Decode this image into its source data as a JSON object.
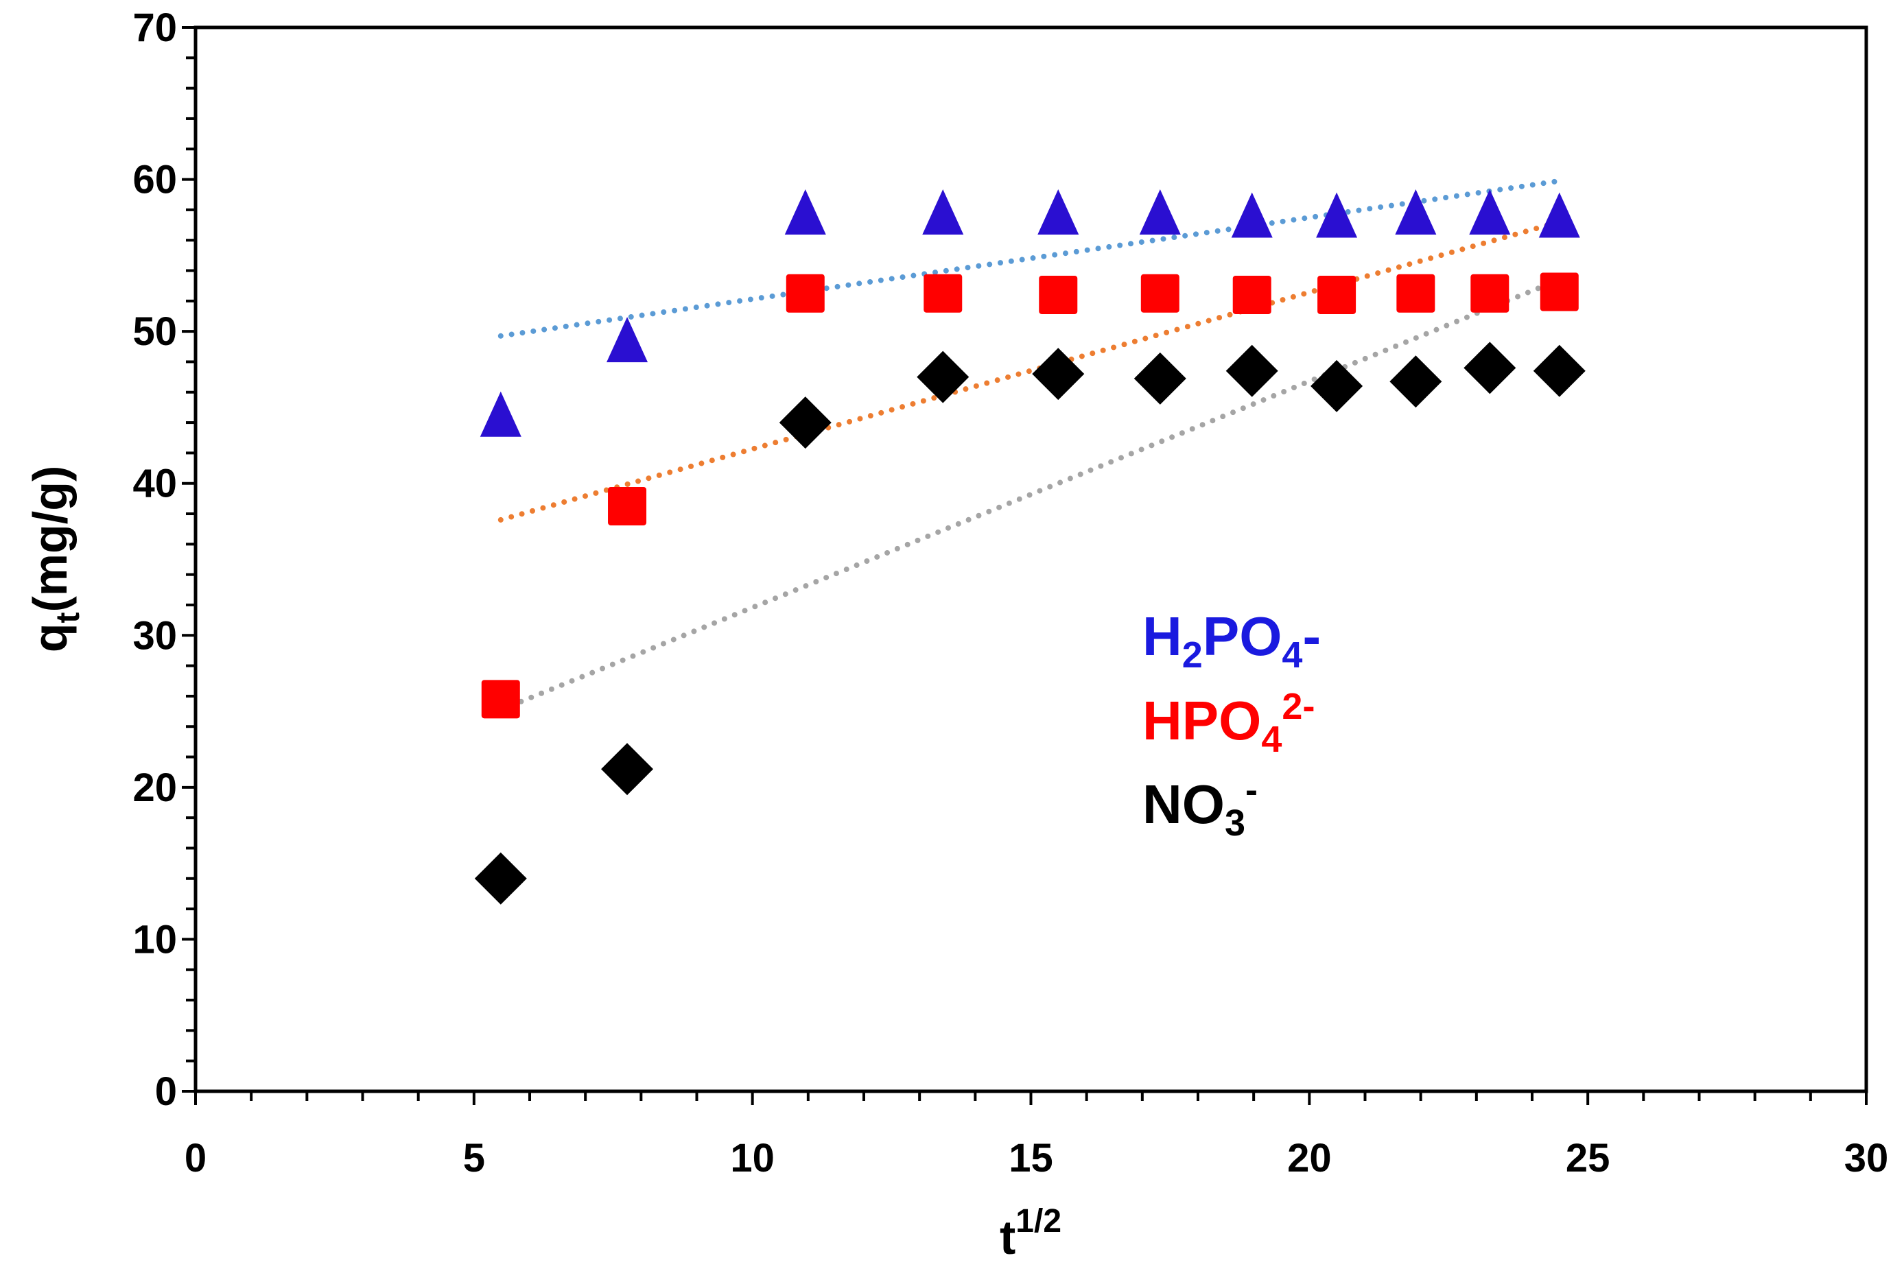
{
  "chart_data": {
    "type": "scatter",
    "title": "",
    "xlabel": "t",
    "xlabel_sup": "1/2",
    "ylabel": "q",
    "ylabel_sub": "t",
    "ylabel_suffix": "(mg/g)",
    "xlim": [
      0,
      30
    ],
    "ylim": [
      0,
      70
    ],
    "x_ticks": [
      0,
      5,
      10,
      15,
      20,
      25,
      30
    ],
    "y_ticks": [
      0,
      10,
      20,
      30,
      40,
      50,
      60,
      70
    ],
    "x_tick_labels": [
      "0",
      "5",
      "10",
      "15",
      "20",
      "25",
      "30"
    ],
    "y_tick_labels": [
      "0",
      "10",
      "20",
      "30",
      "40",
      "50",
      "60",
      "70"
    ],
    "x_minor_step": 1,
    "y_minor_step": 2,
    "grid": false,
    "legend_position": "center-right",
    "series": [
      {
        "name": "H2PO4-",
        "legend": {
          "base": "H",
          "sub1": "2",
          "mid": "PO",
          "sub2": "4",
          "sup": "-"
        },
        "marker": "triangle",
        "color": "#2a0fd1",
        "label_color": "#1a1adf",
        "x": [
          5.48,
          7.75,
          10.95,
          13.42,
          15.49,
          17.32,
          18.97,
          20.49,
          21.91,
          23.24,
          24.49
        ],
        "y": [
          44.2,
          49.1,
          57.5,
          57.5,
          57.5,
          57.5,
          57.3,
          57.3,
          57.5,
          57.5,
          57.3
        ],
        "trendline": {
          "style": "dotted",
          "color": "#5b9bd5",
          "x": [
            5.48,
            24.49
          ],
          "y": [
            49.7,
            59.9
          ]
        }
      },
      {
        "name": "HPO42-",
        "legend": {
          "base": "HPO",
          "sub2": "4",
          "sup": "2-"
        },
        "marker": "square",
        "color": "#ff0000",
        "label_color": "#ff0000",
        "x": [
          5.48,
          7.75,
          10.95,
          13.42,
          15.49,
          17.32,
          18.97,
          20.49,
          21.91,
          23.24,
          24.49
        ],
        "y": [
          25.8,
          38.5,
          52.5,
          52.5,
          52.4,
          52.5,
          52.4,
          52.4,
          52.5,
          52.5,
          52.6
        ],
        "trendline": {
          "style": "dotted",
          "color": "#ed7d31",
          "x": [
            5.48,
            24.49
          ],
          "y": [
            37.6,
            57.2
          ]
        }
      },
      {
        "name": "NO3-",
        "legend": {
          "base": "NO",
          "sub2": "3",
          "sup": "-"
        },
        "marker": "diamond",
        "color": "#000000",
        "label_color": "#000000",
        "x": [
          5.48,
          7.75,
          10.95,
          13.42,
          15.49,
          17.32,
          18.97,
          20.49,
          21.91,
          23.24,
          24.49
        ],
        "y": [
          14.0,
          21.2,
          44.0,
          47.0,
          47.2,
          46.9,
          47.4,
          46.4,
          46.7,
          47.6,
          47.4
        ],
        "trendline": {
          "style": "dotted",
          "color": "#a5a5a5",
          "x": [
            5.48,
            24.49
          ],
          "y": [
            25.1,
            53.4
          ]
        }
      }
    ]
  }
}
